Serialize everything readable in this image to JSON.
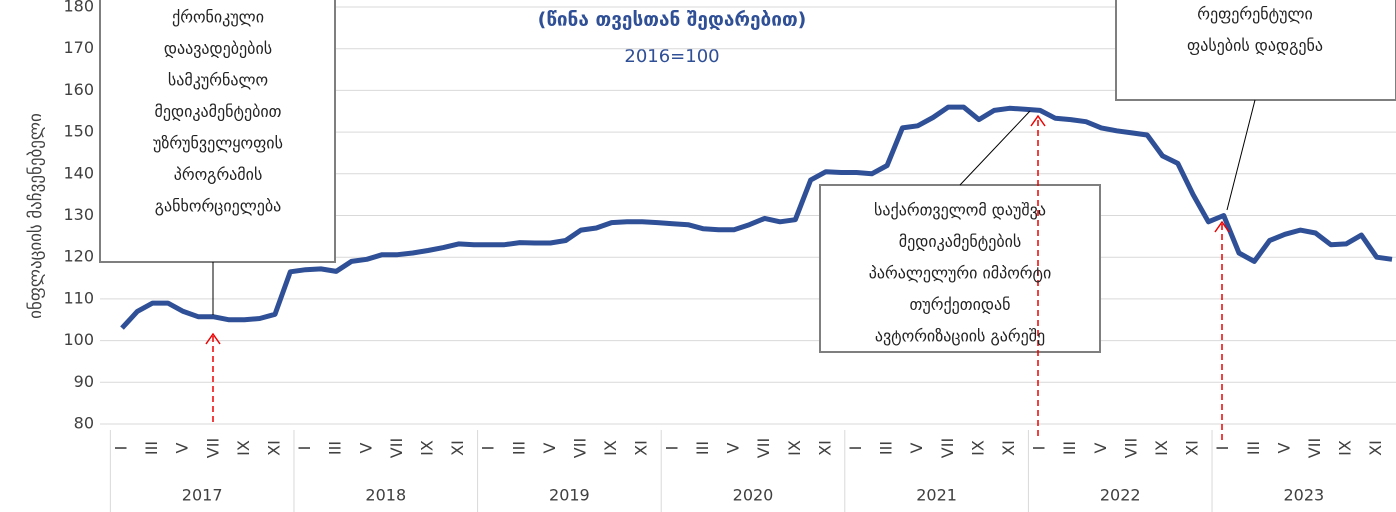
{
  "chart_data": {
    "type": "line",
    "title": "(წინა თვესთან შედარებით)",
    "subtitle": "2016=100",
    "y_label": "ინფლაციის მაჩვენებელი",
    "years": [
      "2017",
      "2018",
      "2019",
      "2020",
      "2021",
      "2022",
      "2023"
    ],
    "categories": [
      "I",
      null,
      "III",
      null,
      "V",
      null,
      "VII",
      null,
      "IX",
      null,
      "XI",
      null,
      "I",
      null,
      "III",
      null,
      "V",
      null,
      "VII",
      null,
      "IX",
      null,
      "XI",
      null,
      "I",
      null,
      "III",
      null,
      "V",
      null,
      "VII",
      null,
      "IX",
      null,
      "XI",
      null,
      "I",
      null,
      "III",
      null,
      "V",
      null,
      "VII",
      null,
      "IX",
      null,
      "XI",
      null,
      "I",
      null,
      "III",
      null,
      "V",
      null,
      "VII",
      null,
      "IX",
      null,
      "XI",
      null,
      "I",
      null,
      "III",
      null,
      "V",
      null,
      "VII",
      null,
      "IX",
      null,
      "XI",
      null,
      "I",
      null,
      "III",
      null,
      "V",
      null,
      "VII",
      null,
      "IX",
      null,
      "XI",
      null
    ],
    "series": [
      {
        "name": "ინფლაცია",
        "color": "#2f4f96",
        "values": [
          103,
          107,
          109,
          109,
          107,
          105.7,
          105.7,
          105,
          105,
          105.3,
          106.3,
          116.5,
          117,
          117.2,
          116.6,
          119,
          119.5,
          120.6,
          120.6,
          121,
          121.6,
          122.3,
          123.2,
          123,
          123,
          123,
          123.5,
          123.4,
          123.4,
          124,
          126.5,
          127,
          128.3,
          128.5,
          128.5,
          128.3,
          128,
          127.8,
          126.8,
          126.6,
          126.6,
          127.8,
          129.3,
          128.5,
          129,
          138.5,
          140.5,
          140.3,
          140.3,
          140,
          142,
          151,
          151.5,
          153.5,
          156,
          156,
          153,
          155.2,
          155.7,
          155.5,
          155.2,
          153.3,
          153,
          152.5,
          151,
          150.3,
          149.8,
          149.3,
          144.3,
          142.5,
          135,
          128.5,
          130,
          121,
          119,
          124,
          125.5,
          126.5,
          125.8,
          123,
          123.2,
          125.3,
          120,
          119.5
        ]
      }
    ],
    "ylim": [
      80,
      180
    ],
    "yticks": [
      80,
      90,
      100,
      110,
      120,
      130,
      140,
      150,
      160,
      170,
      180
    ],
    "grid": true,
    "annotations": [
      {
        "lines": [
          "ქრონიკული",
          "დაავადებების",
          "სამკურნალო",
          "მედიკამენტებით",
          "უზრუნველყოფის",
          "პროგრამის",
          "განხორციელება"
        ]
      },
      {
        "lines": [
          "საქართველომ დაუშვა",
          "მედიკამენტების",
          "პარალელური იმპორტი",
          "თურქეთიდან",
          "ავტორიზაციის გარეშე"
        ]
      },
      {
        "lines": [
          "რეფერენტული",
          "ფასების დადგენა"
        ]
      }
    ]
  }
}
